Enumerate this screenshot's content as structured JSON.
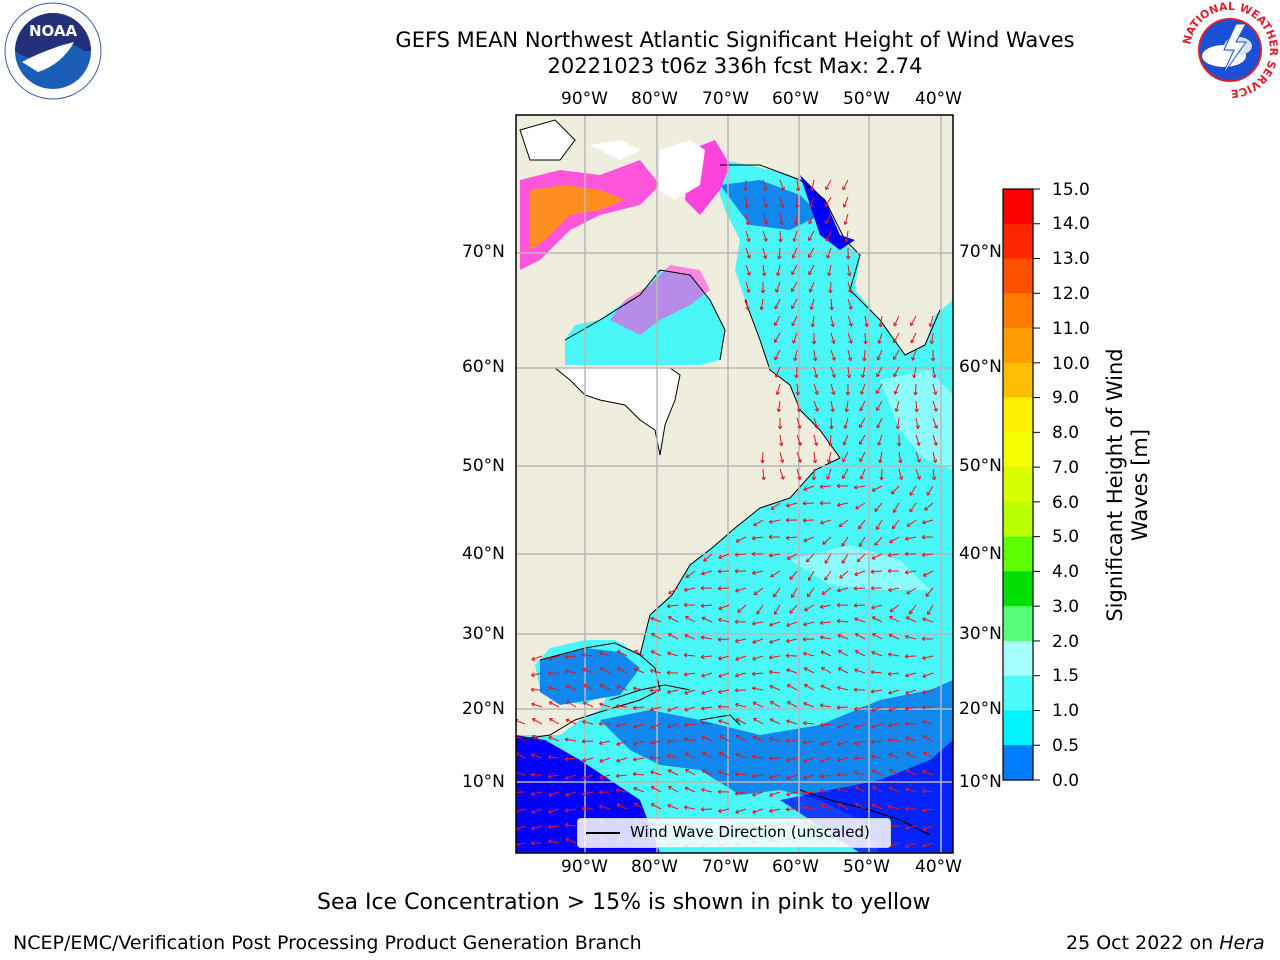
{
  "header": {
    "title_line1": "GEFS MEAN Northwest Atlantic Significant Height of Wind Waves",
    "title_line2": "20221023 t06z 336h fcst   Max: 2.74"
  },
  "logos": {
    "noaa_text": "NOAA",
    "nws_ring_text": "NATIONAL WEATHER SERVICE"
  },
  "map": {
    "lon_labels": [
      "90°W",
      "80°W",
      "70°W",
      "60°W",
      "50°W",
      "40°W"
    ],
    "lat_labels": [
      "70°N",
      "60°N",
      "50°N",
      "40°N",
      "30°N",
      "20°N",
      "10°N"
    ],
    "legend_label": "Wind Wave Direction (unscaled)",
    "colors": {
      "land": "#efedde",
      "ocean_main": "#4af7f7",
      "ocean_light": "#a8fdfd",
      "ocean_mid": "#1188ee",
      "ocean_deep": "#0000ff",
      "ice": "#ff44dd",
      "ice_high": "#ff9900",
      "arrow": "#e8141c",
      "grid": "#b8b8b8"
    }
  },
  "colorbar": {
    "title": "Significant Height of Wind Waves [m]",
    "ticks": [
      "15.0",
      "14.0",
      "13.0",
      "12.0",
      "11.0",
      "10.0",
      "9.0",
      "8.0",
      "7.0",
      "6.0",
      "5.0",
      "4.0",
      "3.0",
      "2.0",
      "1.5",
      "1.0",
      "0.5",
      "0.0"
    ],
    "colors": [
      "#ff0000",
      "#ff2600",
      "#ff5000",
      "#ff7a00",
      "#ff9e00",
      "#ffbd00",
      "#fff000",
      "#f4ff00",
      "#d8ff00",
      "#b8ff00",
      "#5cff00",
      "#00e000",
      "#55ff7a",
      "#a6ffff",
      "#4cfcfc",
      "#00f4ff",
      "#007cff",
      "#0000ff"
    ]
  },
  "footer": {
    "note": "Sea Ice Concentration > 15% is shown in pink to yellow",
    "credit": "NCEP/EMC/Verification Post Processing Product Generation Branch",
    "date": "25 Oct 2022 on",
    "host": "Hera"
  }
}
